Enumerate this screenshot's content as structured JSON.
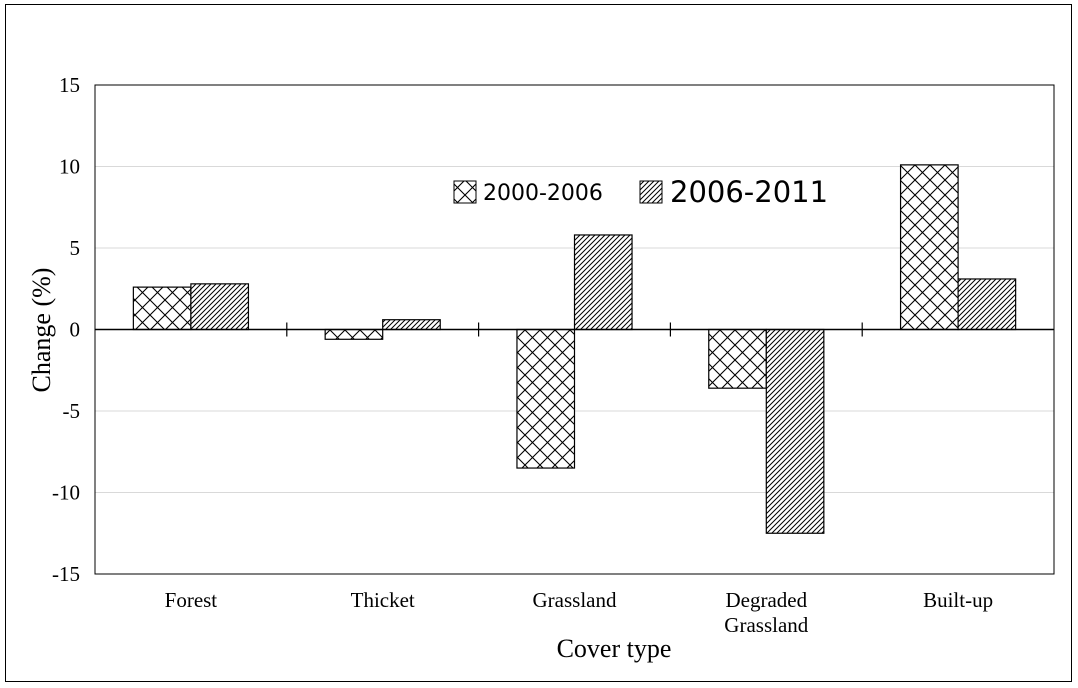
{
  "chart_data": {
    "type": "bar",
    "categories": [
      "Forest",
      "Thicket",
      "Grassland",
      "Degraded\nGrassland",
      "Built-up"
    ],
    "series": [
      {
        "name": "2000-2006",
        "values": [
          2.6,
          -0.6,
          -8.5,
          -3.6,
          10.1
        ],
        "pattern": "crosshatch"
      },
      {
        "name": "2006-2011",
        "values": [
          2.8,
          0.6,
          5.8,
          -12.5,
          3.1
        ],
        "pattern": "diagonal"
      }
    ],
    "xlabel": "Cover type",
    "ylabel": "Change (%)",
    "ylim": [
      -15,
      15
    ],
    "yticks": [
      15,
      10,
      5,
      0,
      -5,
      -10,
      -15
    ],
    "grid": true,
    "legend_position": "top-center",
    "colors": {
      "bar_fill": "#ffffff",
      "pattern": "#000000",
      "grid": "#d9d9d9",
      "axis": "#000000"
    }
  }
}
